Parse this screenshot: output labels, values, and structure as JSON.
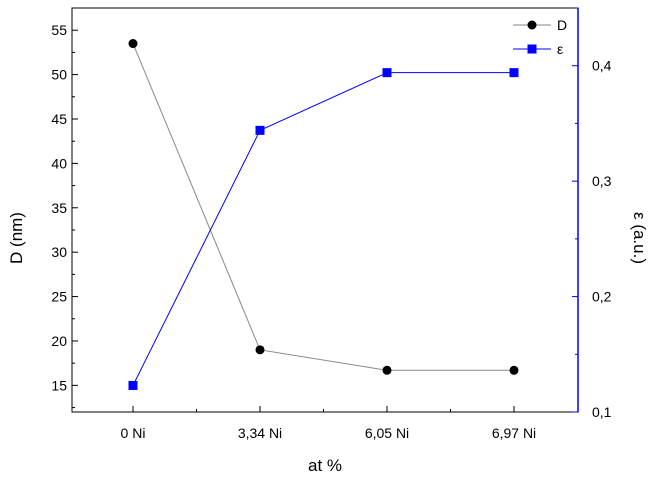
{
  "chart_data": {
    "type": "line",
    "categories": [
      "0 Ni",
      "3,34 Ni",
      "6,05 Ni",
      "6,97 Ni"
    ],
    "xlabel": "at %",
    "series": [
      {
        "name": "D",
        "axis": "left",
        "color": "#000000",
        "line_color": "#888888",
        "marker": "circle",
        "values": [
          53.5,
          19.0,
          16.7,
          16.7
        ]
      },
      {
        "name": "ε",
        "axis": "right",
        "color": "#0000ff",
        "line_color": "#0000ff",
        "marker": "square",
        "values": [
          0.123,
          0.344,
          0.394,
          0.394
        ]
      }
    ],
    "y_left": {
      "label": "D (nm)",
      "ylim": [
        12,
        57.5
      ],
      "ticks": [
        15,
        20,
        25,
        30,
        35,
        40,
        45,
        50,
        55
      ],
      "tick_labels": [
        "15",
        "20",
        "25",
        "30",
        "35",
        "40",
        "45",
        "50",
        "55"
      ],
      "color": "#000000"
    },
    "y_right": {
      "label": "ε (a.u.)",
      "ylim": [
        0.1,
        0.45
      ],
      "ticks": [
        0.1,
        0.2,
        0.3,
        0.4
      ],
      "tick_labels": [
        "0,1",
        "0,2",
        "0,3",
        "0,4"
      ],
      "color": "#0000ff"
    },
    "legend": {
      "position": "top-right",
      "entries": [
        "D",
        "ε"
      ]
    },
    "grid": false
  }
}
